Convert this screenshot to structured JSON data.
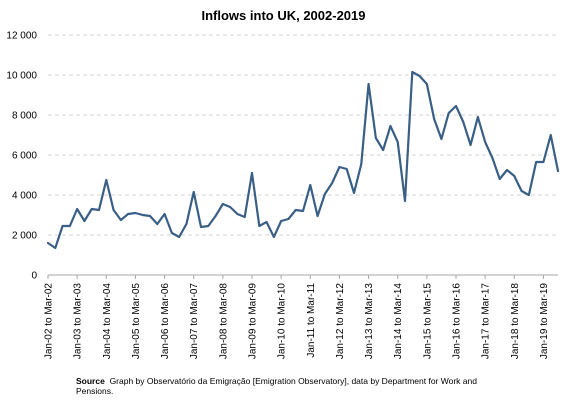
{
  "chart_data": {
    "type": "line",
    "title": "Inflows into UK, 2002-2019",
    "xlabel": "",
    "ylabel": "",
    "ylim": [
      0,
      12000
    ],
    "y_ticks": [
      0,
      2000,
      4000,
      6000,
      8000,
      10000,
      12000
    ],
    "y_tick_labels": [
      "0",
      "2 000",
      "4 000",
      "6 000",
      "8 000",
      "10 000",
      "12 000"
    ],
    "grid": "horizontal dashed",
    "line_color": "#3a5f86",
    "x_tick_labels": [
      "Jan-02 to Mar-02",
      "Jan-03 to Mar-03",
      "Jan-04 to Mar-04",
      "Jan-05 to Mar-05",
      "Jan-06 to Mar-06",
      "Jan-07 to Mar-07",
      "Jan-08 to Mar-08",
      "Jan-09 to Mar-09",
      "Jan-10 to Mar-10",
      "Jan-11 to Mar-11",
      "Jan-12 to Mar-12",
      "Jan-13 to Mar-13",
      "Jan-14 to Mar-14",
      "Jan-15 to Mar-15",
      "Jan-16 to Mar-16",
      "Jan-17 to Mar-17",
      "Jan-18 to Mar-18",
      "Jan-19 to Mar-19"
    ],
    "series": [
      {
        "values": [
          1600,
          1350,
          2450,
          2450,
          3300,
          2700,
          3300,
          3250,
          4750,
          3250,
          2750,
          3050,
          3100,
          3000,
          2950,
          2550,
          3050,
          2100,
          1900,
          2550,
          4150,
          2400,
          2450,
          2950,
          3550,
          3400,
          3050,
          2900,
          5100,
          2450,
          2650,
          1900,
          2700,
          2800,
          3250,
          3200,
          4500,
          2950,
          4050,
          4600,
          5400,
          5300,
          4100,
          5550,
          9550,
          6850,
          6250,
          7450,
          6650,
          3700,
          10150,
          9950,
          9550,
          7800,
          6800,
          8100,
          8450,
          7650,
          6500,
          7900,
          6650,
          5850,
          4800,
          5250,
          4950,
          4200,
          4000,
          5650,
          5650,
          7000,
          5200
        ]
      }
    ]
  },
  "source": {
    "label": "Source",
    "text": "Graph by Observatório da Emigração [Emigration Observatory], data by Department for Work and Pensions."
  }
}
